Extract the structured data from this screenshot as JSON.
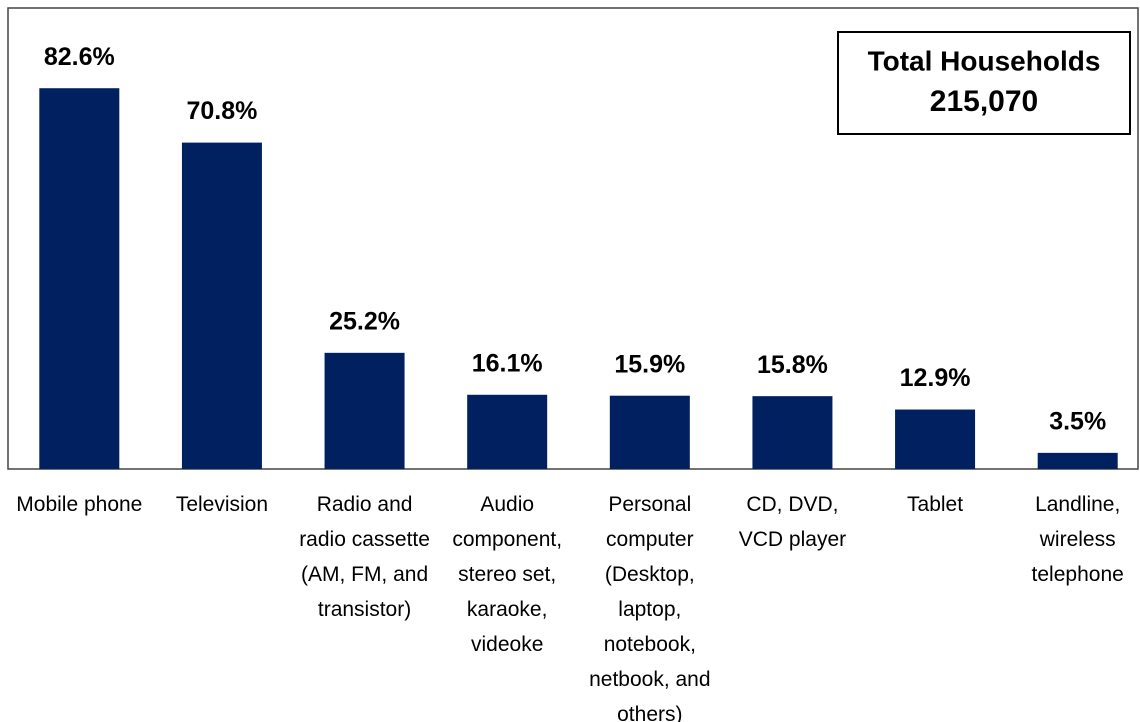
{
  "chart_data": {
    "type": "bar",
    "categories": [
      "Mobile phone",
      "Television",
      "Radio and radio cassette (AM, FM, and transistor)",
      "Audio component, stereo set, karaoke, videoke",
      "Personal computer (Desktop, laptop, notebook, netbook, and others)",
      "CD, DVD, VCD player",
      "Tablet",
      "Landline, wireless telephone"
    ],
    "values": [
      82.6,
      70.8,
      25.2,
      16.1,
      15.9,
      15.8,
      12.9,
      3.5
    ],
    "value_labels": [
      "82.6%",
      "70.8%",
      "25.2%",
      "16.1%",
      "15.9%",
      "15.8%",
      "12.9%",
      "3.5%"
    ],
    "color": "#002060",
    "ylim": [
      0,
      100
    ],
    "annotation": {
      "title": "Total Households",
      "value": "215,070"
    }
  }
}
